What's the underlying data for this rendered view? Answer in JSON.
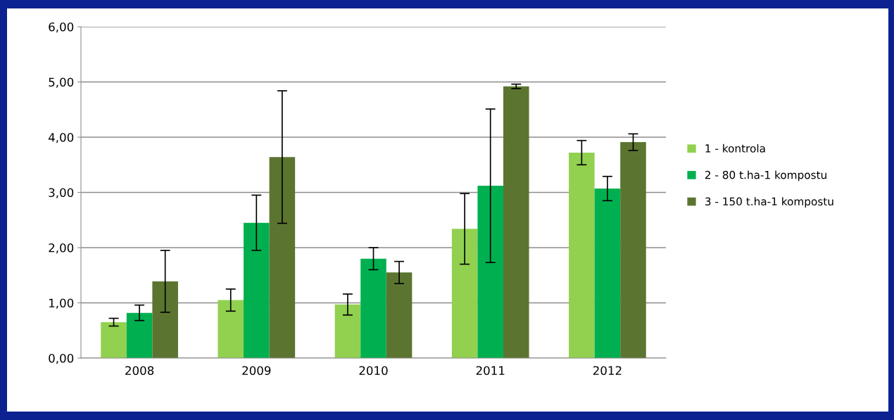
{
  "chart_data": {
    "type": "bar",
    "categories": [
      "2008",
      "2009",
      "2010",
      "2011",
      "2012"
    ],
    "series": [
      {
        "name": "1 - kontrola",
        "color": "#92d050",
        "values": [
          0.65,
          1.05,
          0.97,
          2.34,
          3.72
        ],
        "errors": [
          0.07,
          0.2,
          0.19,
          0.64,
          0.22
        ]
      },
      {
        "name": "2 - 80 t.ha-1 kompostu",
        "color": "#00b050",
        "values": [
          0.82,
          2.45,
          1.8,
          3.12,
          3.07
        ],
        "errors": [
          0.14,
          0.5,
          0.2,
          1.39,
          0.22
        ]
      },
      {
        "name": "3 - 150 t.ha-1 kompostu",
        "color": "#5b7530",
        "values": [
          1.39,
          3.64,
          1.55,
          4.92,
          3.91
        ],
        "errors": [
          0.56,
          1.2,
          0.2,
          0.04,
          0.15
        ]
      }
    ],
    "ylim": [
      0,
      6
    ],
    "yticks": [
      {
        "value": 0,
        "label": "0,00"
      },
      {
        "value": 1,
        "label": "1,00"
      },
      {
        "value": 2,
        "label": "2,00"
      },
      {
        "value": 3,
        "label": "3,00"
      },
      {
        "value": 4,
        "label": "4,00"
      },
      {
        "value": 5,
        "label": "5,00"
      },
      {
        "value": 6,
        "label": "6,00"
      }
    ],
    "grid": "y",
    "legend": "right"
  }
}
